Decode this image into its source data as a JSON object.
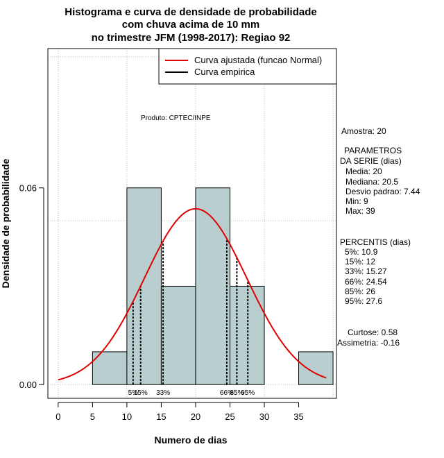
{
  "chart_data": {
    "type": "histogram",
    "title": [
      "Histograma e curva de densidade de probabilidade",
      "com chuva acima de 10 mm",
      "no trimestre JFM (1998-2017): Regiao 92"
    ],
    "xlabel": "Numero de dias",
    "ylabel": "Densidade de probabilidade",
    "xlim": [
      -1.5,
      40.5
    ],
    "ylim": [
      -0.0042,
      0.1025
    ],
    "x_ticks": [
      0,
      5,
      10,
      15,
      20,
      25,
      30,
      35
    ],
    "x_tick_labels": [
      "0",
      "5",
      "10",
      "15",
      "20",
      "25",
      "30",
      "35"
    ],
    "y_ticks": [
      0.0,
      0.06
    ],
    "y_tick_labels": [
      "0.00",
      "0.06"
    ],
    "grid_x": [
      0,
      10,
      20,
      30,
      40
    ],
    "grid_y": [
      0.0,
      0.05,
      0.1
    ],
    "bins": [
      {
        "x0": 5,
        "x1": 10,
        "density": 0.01
      },
      {
        "x0": 10,
        "x1": 15,
        "density": 0.06
      },
      {
        "x0": 15,
        "x1": 20,
        "density": 0.03
      },
      {
        "x0": 20,
        "x1": 25,
        "density": 0.06
      },
      {
        "x0": 25,
        "x1": 30,
        "density": 0.03
      },
      {
        "x0": 30,
        "x1": 35,
        "density": 0.0
      },
      {
        "x0": 35,
        "x1": 40,
        "density": 0.01
      }
    ],
    "bar_color": "#b9cfcf",
    "normal_fit": {
      "mean": 20,
      "sd": 7.44,
      "x_from": 0,
      "x_to": 39,
      "color": "#e00000"
    },
    "legend": {
      "position": "top-right",
      "entries": [
        {
          "label": "Curva ajustada (funcao Normal)",
          "color": "#e00000"
        },
        {
          "label": "Curva empirica",
          "color": "#000000"
        }
      ]
    },
    "percentile_lines": [
      {
        "label": "5%",
        "value": 10.9
      },
      {
        "label": "15%",
        "value": 12
      },
      {
        "label": "33%",
        "value": 15.27
      },
      {
        "label": "66%",
        "value": 24.54
      },
      {
        "label": "85%",
        "value": 26
      },
      {
        "label": "95%",
        "value": 27.6
      }
    ],
    "credit": "Produto: CPTEC/INPE"
  },
  "stats_panel": {
    "sample": "Amostra: 20",
    "params_title_1": "PARAMETROS",
    "params_title_2": "DA SERIE (dias)",
    "params": [
      "Media: 20",
      "Mediana: 20.5",
      "Desvio padrao: 7.44",
      "Min: 9",
      "Max: 39"
    ],
    "percentiles_title": "PERCENTIS (dias)",
    "percentiles": [
      "5%: 10.9",
      "15%: 12",
      "33%: 15.27",
      "66%: 24.54",
      "85%: 26",
      "95%: 27.6"
    ],
    "kurtosis": "Curtose: 0.58",
    "skewness": "Assimetria: -0.16"
  }
}
